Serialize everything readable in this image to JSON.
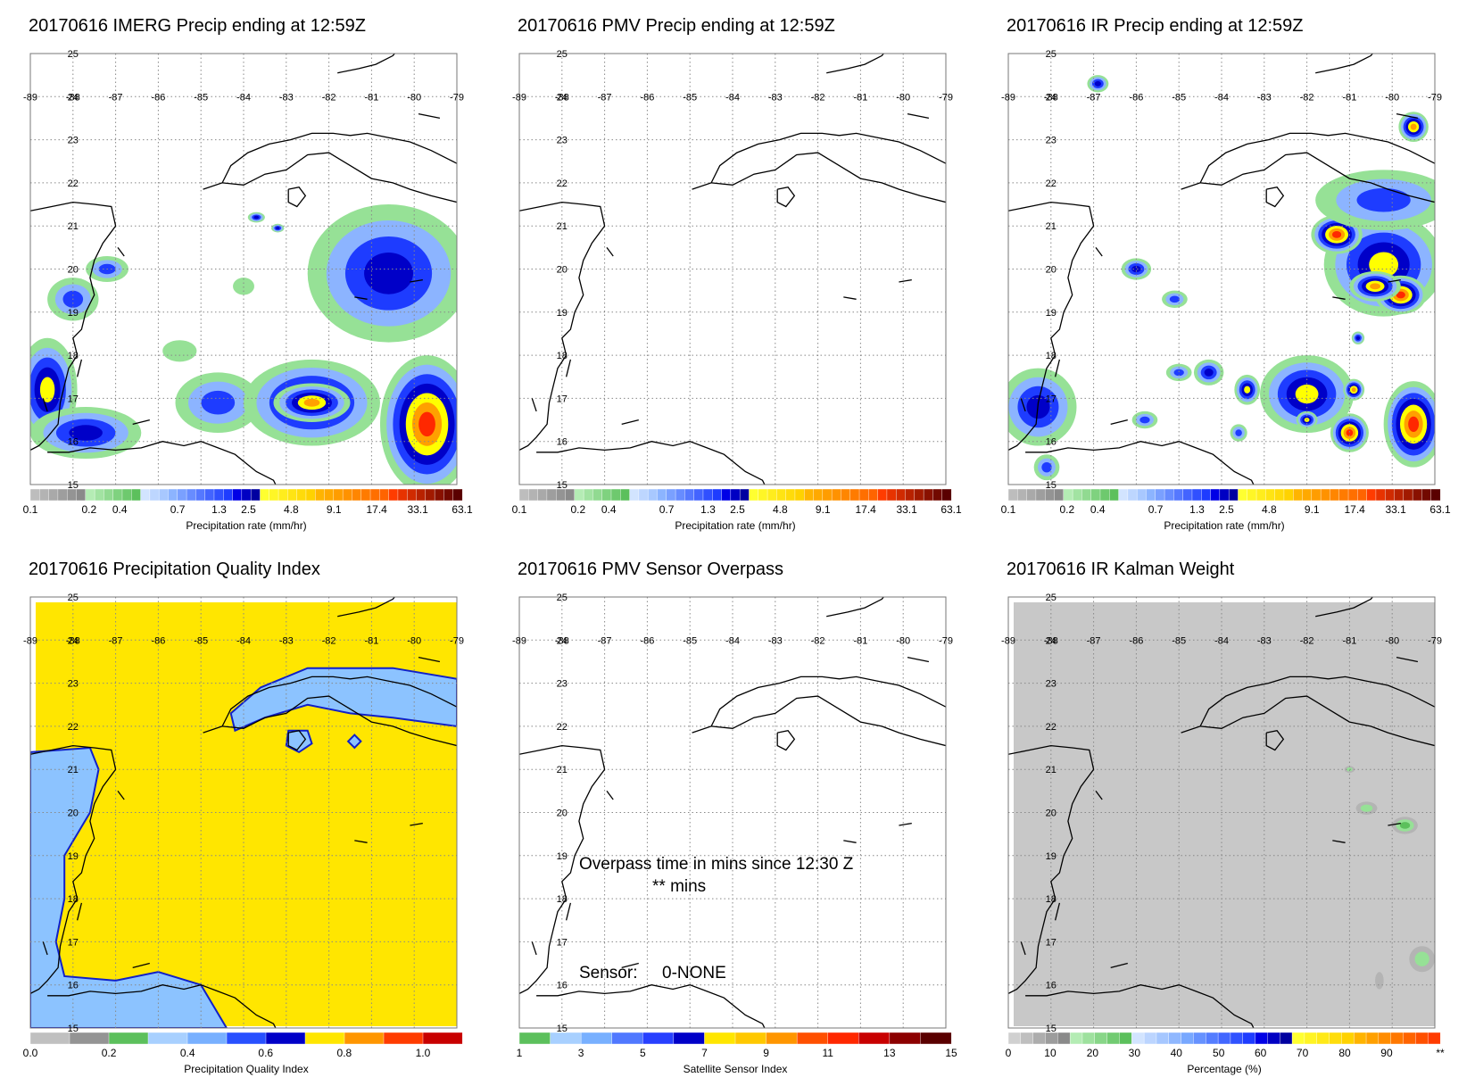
{
  "panels": [
    {
      "title": "20170616 IMERG Precip ending at 12:59Z",
      "xlim": [
        -89,
        -79
      ],
      "ylim": [
        15,
        25
      ],
      "xticks": [
        -89,
        -88,
        -87,
        -86,
        -85,
        -84,
        -83,
        -82,
        -81,
        -80,
        -79
      ],
      "yticks": [
        15,
        16,
        17,
        18,
        19,
        20,
        21,
        22,
        23,
        24,
        25
      ],
      "colorbar": {
        "ticks": [
          0.1,
          0.2,
          0.4,
          0.7,
          1.3,
          2.5,
          4.8,
          9.1,
          17.4,
          33.1,
          63.1
        ],
        "label": "Precipitation rate (mm/hr)"
      }
    },
    {
      "title": "20170616 PMV Precip ending at 12:59Z",
      "xlim": [
        -89,
        -79
      ],
      "ylim": [
        15,
        25
      ],
      "xticks": [
        -89,
        -88,
        -87,
        -86,
        -85,
        -84,
        -83,
        -82,
        -81,
        -80,
        -79
      ],
      "yticks": [
        15,
        16,
        17,
        18,
        19,
        20,
        21,
        22,
        23,
        24,
        25
      ],
      "colorbar": {
        "ticks": [
          0.1,
          0.2,
          0.4,
          0.7,
          1.3,
          2.5,
          4.8,
          9.1,
          17.4,
          33.1,
          63.1
        ],
        "label": "Precipitation rate (mm/hr)"
      }
    },
    {
      "title": "20170616 IR Precip ending at 12:59Z",
      "xlim": [
        -89,
        -79
      ],
      "ylim": [
        15,
        25
      ],
      "xticks": [
        -89,
        -88,
        -87,
        -86,
        -85,
        -84,
        -83,
        -82,
        -81,
        -80,
        -79
      ],
      "yticks": [
        15,
        16,
        17,
        18,
        19,
        20,
        21,
        22,
        23,
        24,
        25
      ],
      "colorbar": {
        "ticks": [
          0.1,
          0.2,
          0.4,
          0.7,
          1.3,
          2.5,
          4.8,
          9.1,
          17.4,
          33.1,
          63.1
        ],
        "label": "Precipitation rate (mm/hr)"
      }
    },
    {
      "title": "20170616 Precipitation Quality Index",
      "xlim": [
        -89,
        -79
      ],
      "ylim": [
        15,
        25
      ],
      "xticks": [
        -89,
        -88,
        -87,
        -86,
        -85,
        -84,
        -83,
        -82,
        -81,
        -80,
        -79
      ],
      "yticks": [
        15,
        16,
        17,
        18,
        19,
        20,
        21,
        22,
        23,
        24,
        25
      ],
      "colorbar": {
        "ticks": [
          {
            "value": 0,
            "label": "0.0"
          },
          0.2,
          0.4,
          0.6,
          0.8,
          {
            "value": 1,
            "label": "1.0"
          }
        ],
        "label": "Precipitation Quality Index"
      }
    },
    {
      "title": "20170616 PMV Sensor Overpass",
      "xlim": [
        -89,
        -79
      ],
      "ylim": [
        15,
        25
      ],
      "xticks": [
        -89,
        -88,
        -87,
        -86,
        -85,
        -84,
        -83,
        -82,
        -81,
        -80,
        -79
      ],
      "yticks": [
        15,
        16,
        17,
        18,
        19,
        20,
        21,
        22,
        23,
        24,
        25
      ],
      "colorbar": {
        "ticks": [
          1,
          3,
          5,
          7,
          9,
          11,
          13,
          15
        ],
        "label": "Satellite Sensor Index"
      },
      "notes": {
        "overpass": "Overpass time in mins since 12:30 Z",
        "minutes": "** mins",
        "sensor_label": "Sensor:",
        "sensor": "0-NONE"
      }
    },
    {
      "title": "20170616 IR Kalman Weight",
      "xlim": [
        -89,
        -79
      ],
      "ylim": [
        15,
        25
      ],
      "xticks": [
        -89,
        -88,
        -87,
        -86,
        -85,
        -84,
        -83,
        -82,
        -81,
        -80,
        -79
      ],
      "yticks": [
        15,
        16,
        17,
        18,
        19,
        20,
        21,
        22,
        23,
        24,
        25
      ],
      "colorbar": {
        "ticks": [
          0,
          10,
          20,
          30,
          40,
          50,
          60,
          70,
          80,
          90,
          "**"
        ],
        "label": "Percentage (%)"
      }
    }
  ]
}
